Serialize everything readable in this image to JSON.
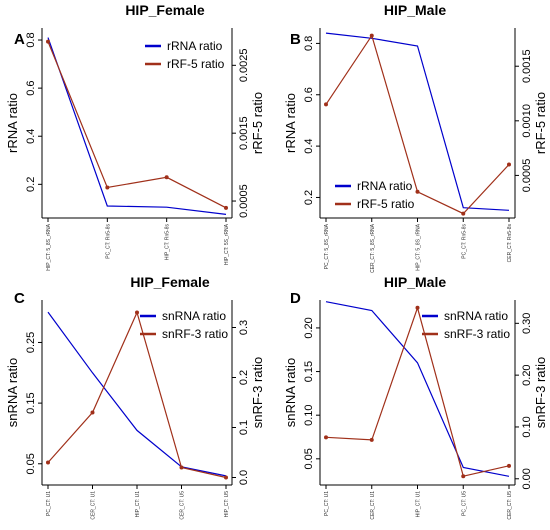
{
  "chart_data": [
    {
      "panel_label": "A",
      "type": "line",
      "title": "HIP_Female",
      "categories": [
        "HIP_CT: 5_8S_rRNA",
        "PC_CT: Rn5-8s",
        "HIP_CT: Rn5-8s",
        "HIP_CT: 5S_rRNA"
      ],
      "ylabel_left": "rRNA ratio",
      "ylabel_right": "rRF-5 ratio",
      "left_ticks": [
        0.2,
        0.4,
        0.6,
        0.8
      ],
      "right_ticks": [
        "0.0005",
        "0.0015",
        "0.0025"
      ],
      "right_tick_values": [
        0.0005,
        0.0015,
        0.0025
      ],
      "ylim_left": [
        0.06,
        0.85
      ],
      "ylim_right": [
        0.00025,
        0.00305
      ],
      "legend_position": "top-right",
      "series": [
        {
          "name": "rRNA ratio",
          "axis": "left",
          "color": "#0000cc",
          "markers": false,
          "values": [
            0.81,
            0.11,
            0.105,
            0.075
          ]
        },
        {
          "name": "rRF-5 ratio",
          "axis": "right",
          "color": "#a0301a",
          "markers": true,
          "values": [
            0.00285,
            0.0007,
            0.00085,
            0.0004
          ]
        }
      ]
    },
    {
      "panel_label": "B",
      "type": "line",
      "title": "HIP_Male",
      "categories": [
        "PC_CT: 5_8S_rRNA",
        "CER_CT: 5_8S_rRNA",
        "HIP_CT: 5_8S_rRNA",
        "PC_CT: Rn5-8s",
        "CER_CT: Rn5-8s"
      ],
      "ylabel_left": "rRNA ratio",
      "ylabel_right": "rRF-5 ratio",
      "left_ticks": [
        0.2,
        0.4,
        0.6,
        0.8
      ],
      "right_ticks": [
        "0.0005",
        "0.0010",
        "0.0015"
      ],
      "right_tick_values": [
        0.0005,
        0.001,
        0.0015
      ],
      "ylim_left": [
        0.12,
        0.86
      ],
      "ylim_right": [
        0.00011,
        0.00185
      ],
      "legend_position": "bottom-left",
      "series": [
        {
          "name": "rRNA ratio",
          "axis": "left",
          "color": "#0000cc",
          "markers": false,
          "values": [
            0.84,
            0.82,
            0.79,
            0.16,
            0.15
          ]
        },
        {
          "name": "rRF-5 ratio",
          "axis": "right",
          "color": "#a0301a",
          "markers": true,
          "values": [
            0.00115,
            0.00178,
            0.00035,
            0.00015,
            0.0006
          ]
        }
      ]
    },
    {
      "panel_label": "C",
      "type": "line",
      "title": "HIP_Female",
      "categories": [
        "PC_CT: U1",
        "CER_CT: U1",
        "HIP_CT: U1",
        "CER_CT: U5",
        "HIP_CT: U5"
      ],
      "ylabel_left": "snRNA ratio",
      "ylabel_right": "snRF-3 ratio",
      "left_ticks": [
        0.05,
        0.15,
        0.25
      ],
      "right_ticks": [
        "0.0",
        "0.1",
        "0.2",
        "0.3"
      ],
      "right_tick_values": [
        0.0,
        0.1,
        0.2,
        0.3
      ],
      "ylim_left": [
        0.015,
        0.32
      ],
      "ylim_right": [
        -0.015,
        0.355
      ],
      "legend_position": "top-right",
      "series": [
        {
          "name": "snRNA ratio",
          "axis": "left",
          "color": "#0000cc",
          "markers": false,
          "values": [
            0.3,
            0.2,
            0.105,
            0.045,
            0.03
          ]
        },
        {
          "name": "snRF-3 ratio",
          "axis": "right",
          "color": "#a0301a",
          "markers": true,
          "values": [
            0.03,
            0.13,
            0.33,
            0.02,
            0.0
          ]
        }
      ]
    },
    {
      "panel_label": "D",
      "type": "line",
      "title": "HIP_Male",
      "categories": [
        "PC_CT: U1",
        "CER_CT: U1",
        "HIP_CT: U1",
        "PC_CT: U5",
        "CER_CT: U5"
      ],
      "ylabel_left": "snRNA ratio",
      "ylabel_right": "snRF-3 ratio",
      "left_ticks": [
        0.05,
        0.1,
        0.15,
        0.2
      ],
      "left_tick_labels": [
        "0.05",
        "0.10",
        "0.15",
        "0.20"
      ],
      "right_ticks": [
        "0.00",
        "0.10",
        "0.20",
        "0.30"
      ],
      "right_tick_values": [
        0.0,
        0.1,
        0.2,
        0.3
      ],
      "ylim_left": [
        0.02,
        0.232
      ],
      "ylim_right": [
        -0.012,
        0.345
      ],
      "legend_position": "top-right",
      "series": [
        {
          "name": "snRNA ratio",
          "axis": "left",
          "color": "#0000cc",
          "markers": false,
          "values": [
            0.23,
            0.22,
            0.16,
            0.04,
            0.03
          ]
        },
        {
          "name": "snRF-3 ratio",
          "axis": "right",
          "color": "#a0301a",
          "markers": true,
          "values": [
            0.08,
            0.075,
            0.33,
            0.005,
            0.025
          ]
        }
      ]
    }
  ]
}
